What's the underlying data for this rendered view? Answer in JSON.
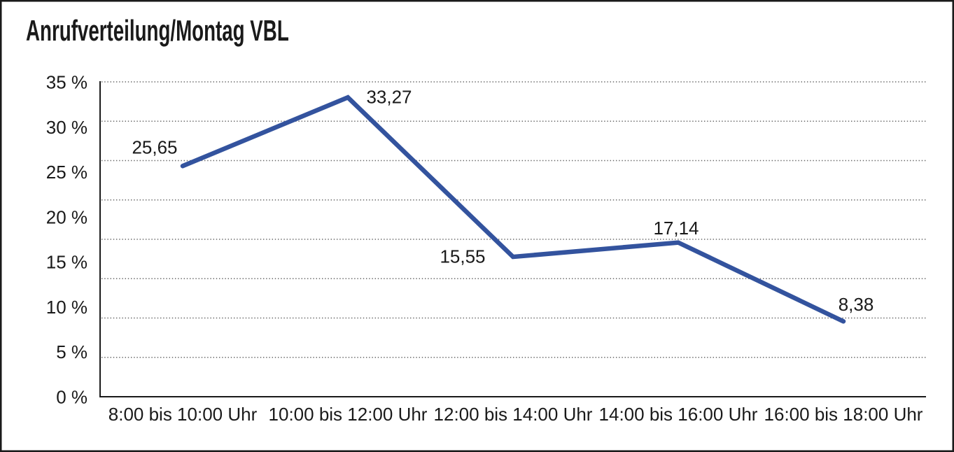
{
  "title": "Anrufverteilung/Montag VBL",
  "window": {
    "background": "#ffffff",
    "border_color": "#1a1a1a"
  },
  "chart_data": {
    "type": "line",
    "title": "Anrufverteilung/Montag VBL",
    "categories": [
      "8:00 bis 10:00 Uhr",
      "10:00 bis 12:00 Uhr",
      "12:00 bis 14:00 Uhr",
      "14:00 bis 16:00 Uhr",
      "16:00 bis 18:00 Uhr"
    ],
    "values": [
      25.65,
      33.27,
      15.55,
      17.14,
      8.38
    ],
    "point_labels": [
      "25,65",
      "33,27",
      "15,55",
      "17,14",
      "8,38"
    ],
    "xlabel": "",
    "ylabel": "",
    "ylim": [
      0,
      35
    ],
    "y_ticks": [
      0,
      5,
      10,
      15,
      20,
      25,
      30,
      35
    ],
    "y_tick_labels": [
      "0 %",
      "5 %",
      "10 %",
      "15 %",
      "20 %",
      "25 %",
      "30 %",
      "35 %"
    ],
    "grid": {
      "horizontal": true,
      "style": "dotted",
      "bands": 8,
      "vertical": false
    },
    "legend_position": "none",
    "line_color": "#33539E",
    "axis_color": "#1a1a1a",
    "gridline_color": "#666666",
    "text_color": "#1a1a1a"
  }
}
